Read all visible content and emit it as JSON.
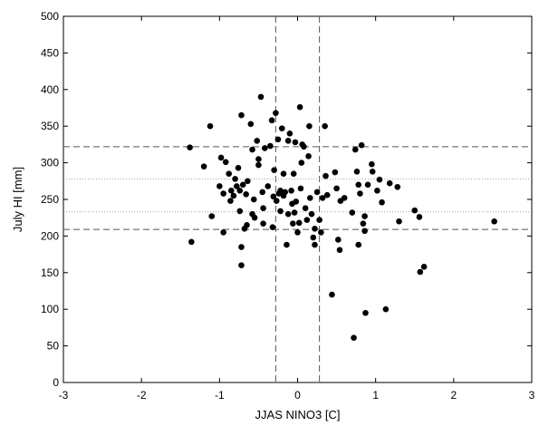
{
  "chart_data": {
    "type": "scatter",
    "title": "",
    "xlabel": "JJAS NINO3 [C]",
    "ylabel": "July HI [mm]",
    "xlim": [
      -3,
      3
    ],
    "ylim": [
      0,
      500
    ],
    "xticks": [
      -3,
      -2,
      -1,
      0,
      1,
      2,
      3
    ],
    "yticks": [
      0,
      50,
      100,
      150,
      200,
      250,
      300,
      350,
      400,
      450,
      500
    ],
    "grid": false,
    "reference_lines": {
      "vertical_dashed": [
        -0.28,
        0.28
      ],
      "horizontal_dashed": [
        322,
        209
      ],
      "horizontal_dotted": [
        278,
        233
      ]
    },
    "series": [
      {
        "marker_color": "#000000",
        "points": [
          [
            -1.38,
            321
          ],
          [
            -1.36,
            192
          ],
          [
            -1.2,
            295
          ],
          [
            -1.12,
            350
          ],
          [
            -1.1,
            227
          ],
          [
            -1.0,
            268
          ],
          [
            -0.98,
            307
          ],
          [
            -0.95,
            205
          ],
          [
            -0.95,
            258
          ],
          [
            -0.92,
            301
          ],
          [
            -0.88,
            285
          ],
          [
            -0.86,
            248
          ],
          [
            -0.85,
            262
          ],
          [
            -0.82,
            255
          ],
          [
            -0.8,
            278
          ],
          [
            -0.78,
            268
          ],
          [
            -0.76,
            293
          ],
          [
            -0.74,
            234
          ],
          [
            -0.74,
            262
          ],
          [
            -0.72,
            365
          ],
          [
            -0.72,
            185
          ],
          [
            -0.72,
            160
          ],
          [
            -0.7,
            270
          ],
          [
            -0.68,
            210
          ],
          [
            -0.66,
            257
          ],
          [
            -0.65,
            215
          ],
          [
            -0.64,
            275
          ],
          [
            -0.6,
            353
          ],
          [
            -0.58,
            318
          ],
          [
            -0.58,
            230
          ],
          [
            -0.56,
            250
          ],
          [
            -0.55,
            225
          ],
          [
            -0.52,
            330
          ],
          [
            -0.5,
            305
          ],
          [
            -0.5,
            297
          ],
          [
            -0.47,
            390
          ],
          [
            -0.45,
            260
          ],
          [
            -0.44,
            238
          ],
          [
            -0.44,
            217
          ],
          [
            -0.42,
            320
          ],
          [
            -0.38,
            268
          ],
          [
            -0.35,
            323
          ],
          [
            -0.33,
            358
          ],
          [
            -0.32,
            212
          ],
          [
            -0.31,
            254
          ],
          [
            -0.3,
            290
          ],
          [
            -0.28,
            368
          ],
          [
            -0.27,
            248
          ],
          [
            -0.25,
            332
          ],
          [
            -0.24,
            258
          ],
          [
            -0.22,
            262
          ],
          [
            -0.22,
            234
          ],
          [
            -0.2,
            347
          ],
          [
            -0.18,
            285
          ],
          [
            -0.18,
            255
          ],
          [
            -0.16,
            260
          ],
          [
            -0.14,
            188
          ],
          [
            -0.12,
            330
          ],
          [
            -0.12,
            230
          ],
          [
            -0.1,
            340
          ],
          [
            -0.08,
            262
          ],
          [
            -0.07,
            244
          ],
          [
            -0.06,
            217
          ],
          [
            -0.05,
            285
          ],
          [
            -0.04,
            232
          ],
          [
            -0.03,
            328
          ],
          [
            -0.02,
            247
          ],
          [
            0.0,
            205
          ],
          [
            0.02,
            218
          ],
          [
            0.03,
            376
          ],
          [
            0.04,
            265
          ],
          [
            0.05,
            300
          ],
          [
            0.06,
            325
          ],
          [
            0.08,
            322
          ],
          [
            0.1,
            238
          ],
          [
            0.12,
            222
          ],
          [
            0.14,
            309
          ],
          [
            0.15,
            350
          ],
          [
            0.16,
            252
          ],
          [
            0.18,
            230
          ],
          [
            0.2,
            198
          ],
          [
            0.22,
            210
          ],
          [
            0.22,
            188
          ],
          [
            0.25,
            260
          ],
          [
            0.28,
            222
          ],
          [
            0.3,
            205
          ],
          [
            0.32,
            252
          ],
          [
            0.35,
            350
          ],
          [
            0.36,
            282
          ],
          [
            0.38,
            256
          ],
          [
            0.44,
            120
          ],
          [
            0.48,
            287
          ],
          [
            0.5,
            265
          ],
          [
            0.52,
            195
          ],
          [
            0.54,
            181
          ],
          [
            0.55,
            248
          ],
          [
            0.6,
            252
          ],
          [
            0.7,
            232
          ],
          [
            0.72,
            61
          ],
          [
            0.74,
            318
          ],
          [
            0.76,
            288
          ],
          [
            0.78,
            270
          ],
          [
            0.78,
            188
          ],
          [
            0.8,
            258
          ],
          [
            0.82,
            324
          ],
          [
            0.84,
            217
          ],
          [
            0.86,
            227
          ],
          [
            0.86,
            207
          ],
          [
            0.87,
            95
          ],
          [
            0.9,
            270
          ],
          [
            0.95,
            298
          ],
          [
            0.96,
            288
          ],
          [
            1.02,
            262
          ],
          [
            1.05,
            277
          ],
          [
            1.08,
            246
          ],
          [
            1.13,
            100
          ],
          [
            1.18,
            272
          ],
          [
            1.28,
            267
          ],
          [
            1.3,
            220
          ],
          [
            1.5,
            235
          ],
          [
            1.56,
            226
          ],
          [
            1.57,
            151
          ],
          [
            1.62,
            158
          ],
          [
            2.52,
            220
          ]
        ]
      }
    ]
  }
}
